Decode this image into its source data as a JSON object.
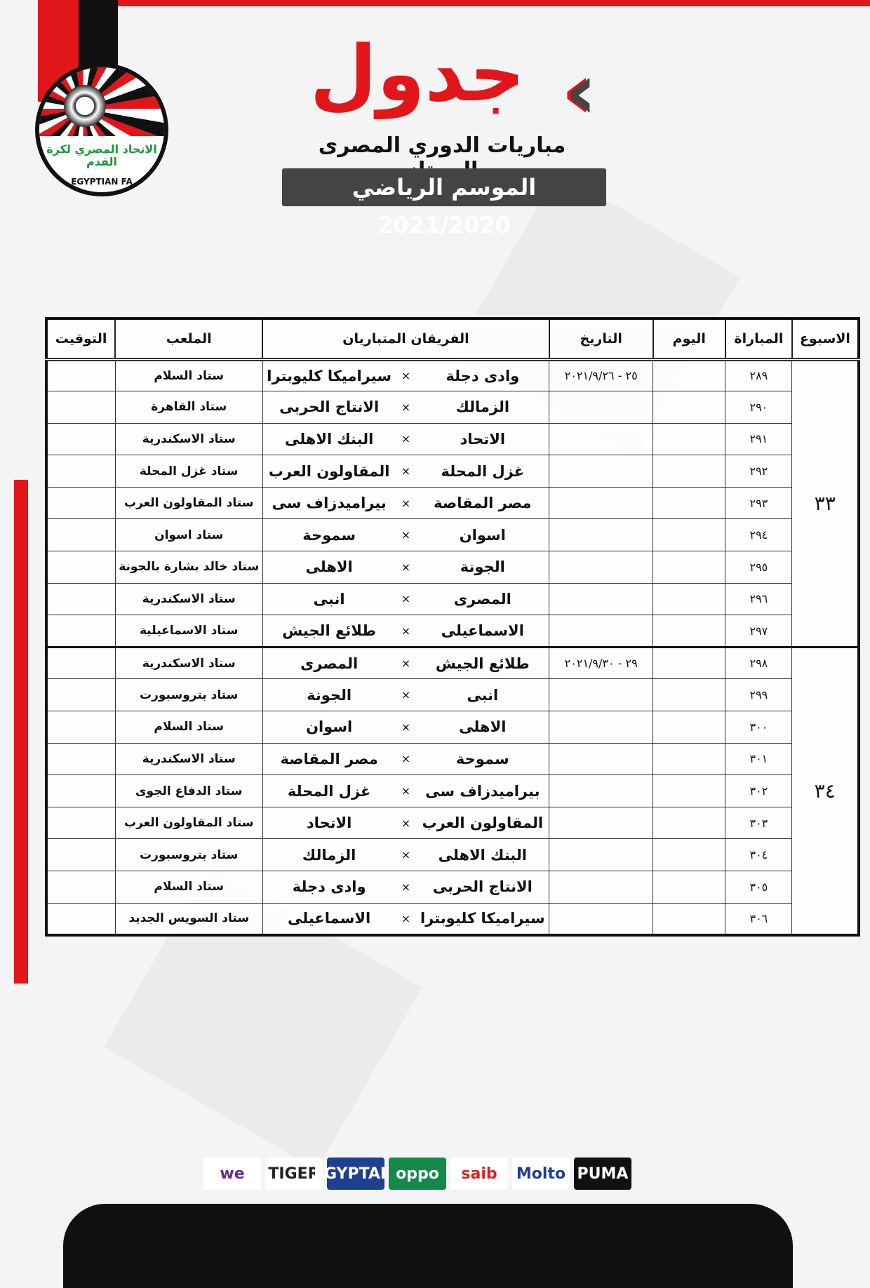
{
  "header": {
    "title": "جدول",
    "subtitle": "مباريات الدوري المصرى الممتاز",
    "season": "الموسم الرياضي 2021/2020"
  },
  "logo": {
    "arabic": "الاتحاد المصري لكرة القدم",
    "english": "EGYPTIAN FA"
  },
  "colors": {
    "accent": "#e0161b",
    "dark": "#111111",
    "green": "#1a9a3a"
  },
  "table": {
    "headers": {
      "week": "الاسبوع",
      "match": "المباراة",
      "day": "اليوم",
      "date": "التاريخ",
      "teams": "الفريقان المتباريان",
      "stadium": "الملعب",
      "time": "التوقيت"
    },
    "vs": "×",
    "weeks": [
      {
        "week": "٣٣",
        "date": "٢٥ - ٢٠٢١/٩/٢٦",
        "matches": [
          {
            "num": "٢٨٩",
            "home": "وادى دجلة",
            "away": "سيراميكا كليوبترا",
            "stadium": "ستاد السلام"
          },
          {
            "num": "٢٩٠",
            "home": "الزمالك",
            "away": "الانتاج الحربى",
            "stadium": "ستاد القاهرة"
          },
          {
            "num": "٢٩١",
            "home": "الاتحاد",
            "away": "البنك الاهلى",
            "stadium": "ستاد الاسكندرية"
          },
          {
            "num": "٢٩٢",
            "home": "غزل المحلة",
            "away": "المقاولون العرب",
            "stadium": "ستاد غزل المحلة"
          },
          {
            "num": "٢٩٣",
            "home": "مصر المقاصة",
            "away": "بيراميدزاف سى",
            "stadium": "ستاد المقاولون العرب"
          },
          {
            "num": "٢٩٤",
            "home": "اسوان",
            "away": "سموحة",
            "stadium": "ستاد اسوان"
          },
          {
            "num": "٢٩٥",
            "home": "الجونة",
            "away": "الاهلى",
            "stadium": "ستاد خالد بشارة بالجونة"
          },
          {
            "num": "٢٩٦",
            "home": "المصرى",
            "away": "انبى",
            "stadium": "ستاد الاسكندرية"
          },
          {
            "num": "٢٩٧",
            "home": "الاسماعيلى",
            "away": "طلائع الجيش",
            "stadium": "ستاد الاسماعيلية"
          }
        ]
      },
      {
        "week": "٣٤",
        "date": "٢٩ - ٢٠٢١/٩/٣٠",
        "matches": [
          {
            "num": "٢٩٨",
            "home": "طلائع الجيش",
            "away": "المصرى",
            "stadium": "ستاد الاسكندرية"
          },
          {
            "num": "٢٩٩",
            "home": "انبى",
            "away": "الجونة",
            "stadium": "ستاد بتروسبورت"
          },
          {
            "num": "٣٠٠",
            "home": "الاهلى",
            "away": "اسوان",
            "stadium": "ستاد السلام"
          },
          {
            "num": "٣٠١",
            "home": "سموحة",
            "away": "مصر المقاصة",
            "stadium": "ستاد الاسكندرية"
          },
          {
            "num": "٣٠٢",
            "home": "بيراميدزاف سى",
            "away": "غزل المحلة",
            "stadium": "ستاد الدفاع الجوى"
          },
          {
            "num": "٣٠٣",
            "home": "المقاولون العرب",
            "away": "الاتحاد",
            "stadium": "ستاد المقاولون العرب"
          },
          {
            "num": "٣٠٤",
            "home": "البنك الاهلى",
            "away": "الزمالك",
            "stadium": "ستاد بتروسبورت"
          },
          {
            "num": "٣٠٥",
            "home": "الانتاج الحربى",
            "away": "وادى دجلة",
            "stadium": "ستاد السلام"
          },
          {
            "num": "٣٠٦",
            "home": "سيراميكا كليوبترا",
            "away": "الاسماعيلى",
            "stadium": "ستاد السويس الجديد"
          }
        ]
      }
    ]
  },
  "sponsors": [
    "we",
    "TIGER",
    "EGYPTAIR",
    "oppo",
    "saib",
    "Molto",
    "PUMA"
  ]
}
